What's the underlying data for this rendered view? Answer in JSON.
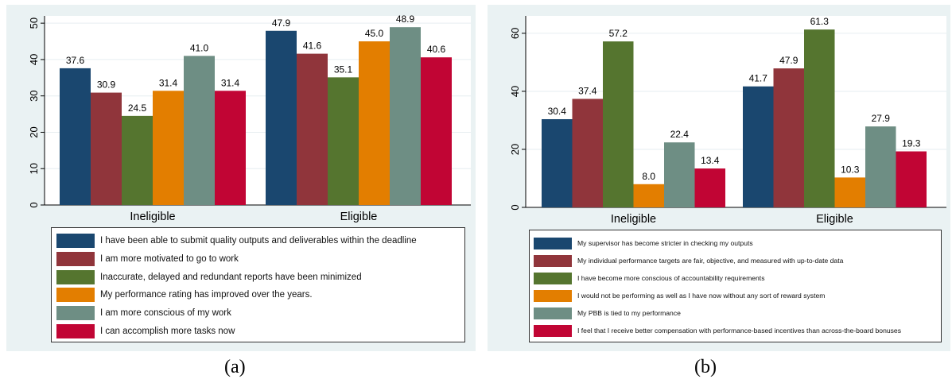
{
  "chart_data": [
    {
      "type": "bar",
      "title": "",
      "xlabel": "",
      "ylabel": "",
      "categories": [
        "Ineligible",
        "Eligible"
      ],
      "ylim": [
        0,
        52
      ],
      "yticks": [
        0,
        10,
        20,
        30,
        40,
        50
      ],
      "ytick_labels": [
        "0",
        "10",
        "20",
        "30",
        "40",
        "50"
      ],
      "grid": true,
      "legend_position": "bottom",
      "series": [
        {
          "name": "I have been able to submit quality outputs and deliverables within the deadline",
          "color": "#1a476f",
          "values": [
            37.6,
            47.9
          ],
          "labels": [
            "37.6",
            "47.9"
          ]
        },
        {
          "name": "I am more motivated to go to work",
          "color": "#90353b",
          "values": [
            30.9,
            41.6
          ],
          "labels": [
            "30.9",
            "41.6"
          ]
        },
        {
          "name": "Inaccurate, delayed and redundant reports have been minimized",
          "color": "#55752f",
          "values": [
            24.5,
            35.1
          ],
          "labels": [
            "24.5",
            "35.1"
          ]
        },
        {
          "name": "My performance rating has improved over the years.",
          "color": "#e37e00",
          "values": [
            31.4,
            45.0
          ],
          "labels": [
            "31.4",
            "45.0"
          ]
        },
        {
          "name": "I am more conscious of my work",
          "color": "#6e8e84",
          "values": [
            41.0,
            48.9
          ],
          "labels": [
            "41.0",
            "48.9"
          ]
        },
        {
          "name": "I can accomplish more tasks now",
          "color": "#c10534",
          "values": [
            31.4,
            40.6
          ],
          "labels": [
            "31.4",
            "40.6"
          ]
        }
      ]
    },
    {
      "type": "bar",
      "title": "",
      "xlabel": "",
      "ylabel": "",
      "categories": [
        "Ineligible",
        "Eligible"
      ],
      "ylim": [
        0,
        66
      ],
      "yticks": [
        0,
        20,
        40,
        60
      ],
      "ytick_labels": [
        "0",
        "20",
        "40",
        "60"
      ],
      "grid": true,
      "legend_position": "bottom",
      "series": [
        {
          "name": "My supervisor has become stricter in checking my outputs",
          "color": "#1a476f",
          "values": [
            30.4,
            41.7
          ],
          "labels": [
            "30.4",
            "41.7"
          ]
        },
        {
          "name": "My individual performance targets are fair, objective, and measured with up-to-date data",
          "color": "#90353b",
          "values": [
            37.4,
            47.9
          ],
          "labels": [
            "37.4",
            "47.9"
          ]
        },
        {
          "name": "I have become more conscious of accountability requirements",
          "color": "#55752f",
          "values": [
            57.2,
            61.3
          ],
          "labels": [
            "57.2",
            "61.3"
          ]
        },
        {
          "name": "I would not be performing as well as I have now without any sort of reward system",
          "color": "#e37e00",
          "values": [
            8.0,
            10.3
          ],
          "labels": [
            "8.0",
            "10.3"
          ]
        },
        {
          "name": "My PBB is tied to my performance",
          "color": "#6e8e84",
          "values": [
            22.4,
            27.9
          ],
          "labels": [
            "22.4",
            "27.9"
          ]
        },
        {
          "name": "I feel that I receive better compensation with performance-based incentives than across-the-board bonuses",
          "color": "#c10534",
          "values": [
            13.4,
            19.3
          ],
          "labels": [
            "13.4",
            "19.3"
          ]
        }
      ]
    }
  ],
  "captions": [
    "(a)",
    "(b)"
  ]
}
